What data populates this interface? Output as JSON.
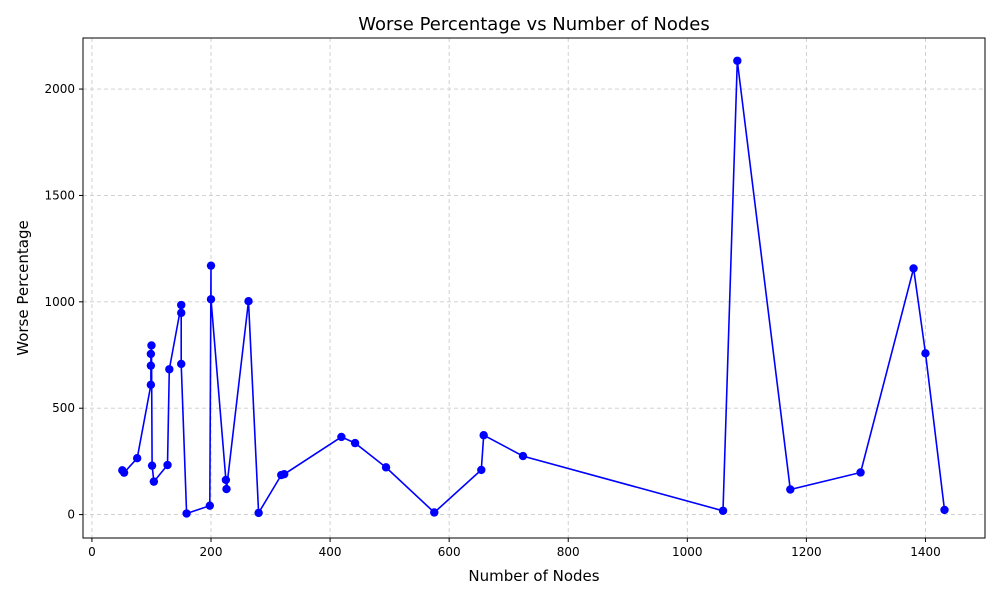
{
  "chart_data": {
    "type": "line",
    "title": "Worse Percentage vs Number of Nodes",
    "xlabel": "Number of Nodes",
    "ylabel": "Worse Percentage",
    "xlim": [
      -15,
      1500
    ],
    "ylim": [
      -110,
      2240
    ],
    "xticks": [
      0,
      200,
      400,
      600,
      800,
      1000,
      1200,
      1400
    ],
    "yticks": [
      0,
      500,
      1000,
      1500,
      2000
    ],
    "grid": true,
    "series": [
      {
        "color": "#0000ff",
        "marker": "circle",
        "points": [
          [
            51,
            208
          ],
          [
            54,
            197
          ],
          [
            76,
            265
          ],
          [
            99,
            610
          ],
          [
            99,
            700
          ],
          [
            99,
            755
          ],
          [
            100,
            795
          ],
          [
            101,
            230
          ],
          [
            104,
            155
          ],
          [
            127,
            233
          ],
          [
            130,
            683
          ],
          [
            150,
            985
          ],
          [
            150,
            948
          ],
          [
            150,
            708
          ],
          [
            159,
            5
          ],
          [
            198,
            42
          ],
          [
            200,
            1170
          ],
          [
            200,
            1012
          ],
          [
            225,
            163
          ],
          [
            226,
            120
          ],
          [
            263,
            1003
          ],
          [
            280,
            8
          ],
          [
            318,
            186
          ],
          [
            323,
            190
          ],
          [
            419,
            365
          ],
          [
            442,
            336
          ],
          [
            494,
            222
          ],
          [
            575,
            10
          ],
          [
            654,
            210
          ],
          [
            658,
            373
          ],
          [
            724,
            275
          ],
          [
            1060,
            18
          ],
          [
            1084,
            2133
          ],
          [
            1173,
            118
          ],
          [
            1291,
            198
          ],
          [
            1380,
            1157
          ],
          [
            1400,
            758
          ],
          [
            1432,
            22
          ]
        ]
      }
    ]
  }
}
